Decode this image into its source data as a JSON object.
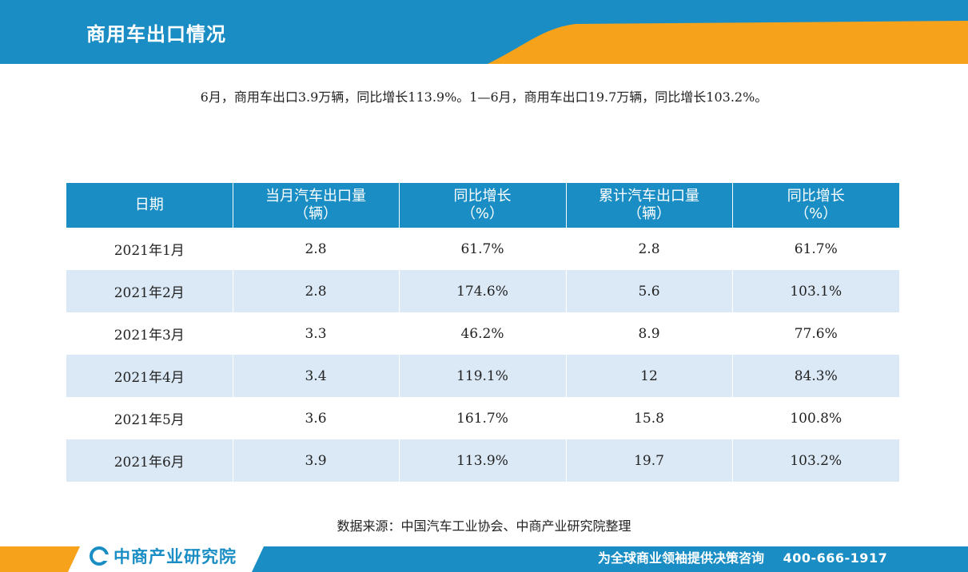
{
  "header": {
    "title": "商用车出口情况",
    "colors": {
      "blue": "#1a8ec4",
      "orange": "#f7a21b"
    }
  },
  "summary": "6月，商用车出口3.9万辆，同比增长113.9%。1—6月，商用车出口19.7万辆，同比增长103.2%。",
  "table": {
    "headers": [
      {
        "line1": "日期",
        "line2": ""
      },
      {
        "line1": "当月汽车出口量",
        "line2": "（辆）"
      },
      {
        "line1": "同比增长",
        "line2": "（%）"
      },
      {
        "line1": "累计汽车出口量",
        "line2": "（辆）"
      },
      {
        "line1": "同比增长",
        "line2": "（%）"
      }
    ],
    "rows": [
      [
        "2021年1月",
        "2.8",
        "61.7%",
        "2.8",
        "61.7%"
      ],
      [
        "2021年2月",
        "2.8",
        "174.6%",
        "5.6",
        "103.1%"
      ],
      [
        "2021年3月",
        "3.3",
        "46.2%",
        "8.9",
        "77.6%"
      ],
      [
        "2021年4月",
        "3.4",
        "119.1%",
        "12",
        "84.3%"
      ],
      [
        "2021年5月",
        "3.6",
        "161.7%",
        "15.8",
        "100.8%"
      ],
      [
        "2021年6月",
        "3.9",
        "113.9%",
        "19.7",
        "103.2%"
      ]
    ],
    "colors": {
      "header_bg": "#1a8ec4",
      "alt_row_bg": "#dbe9f6"
    }
  },
  "source": "数据来源：中国汽车工业协会、中商产业研究院整理",
  "footer": {
    "logo_text": "中商产业研究院",
    "slogan": "为全球商业领袖提供决策咨询",
    "phone": "400-666-1917"
  }
}
